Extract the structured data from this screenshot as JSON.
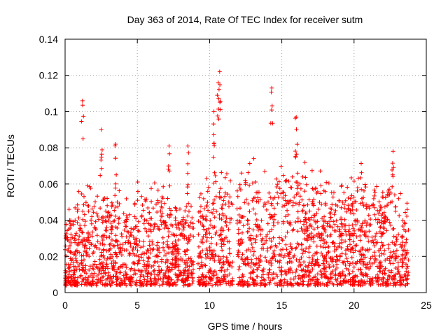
{
  "chart_data": {
    "type": "scatter",
    "title": "Day 363 of 2014, Rate Of TEC Index for receiver sutm",
    "xlabel": "GPS time / hours",
    "ylabel": "ROTI / TECUs",
    "xlim": [
      0,
      25
    ],
    "ylim": [
      0,
      0.14
    ],
    "xticks": [
      0,
      5,
      10,
      15,
      20,
      25
    ],
    "xtick_labels": [
      "0",
      "5",
      "10",
      "15",
      "20",
      "25"
    ],
    "yticks": [
      0,
      0.02,
      0.04,
      0.06,
      0.08,
      0.1,
      0.12,
      0.14
    ],
    "ytick_labels": [
      "0",
      "0.02",
      "0.04",
      "0.06",
      "0.08",
      "0.1",
      "0.12",
      "0.14"
    ],
    "grid": true,
    "marker": "+",
    "color": "#ff0000",
    "data_gaps_hours": [
      [
        8.9,
        9.2
      ],
      [
        11.6,
        11.9
      ]
    ],
    "notable_points": [
      {
        "x": 1.2,
        "y": 0.106
      },
      {
        "x": 2.5,
        "y": 0.09
      },
      {
        "x": 3.5,
        "y": 0.082
      },
      {
        "x": 7.2,
        "y": 0.081
      },
      {
        "x": 8.5,
        "y": 0.081
      },
      {
        "x": 10.3,
        "y": 0.1
      },
      {
        "x": 10.6,
        "y": 0.116
      },
      {
        "x": 10.7,
        "y": 0.122
      },
      {
        "x": 14.3,
        "y": 0.113
      },
      {
        "x": 16.0,
        "y": 0.097
      },
      {
        "x": 22.7,
        "y": 0.078
      }
    ],
    "envelope": [
      {
        "x": 0.5,
        "y": 0.045
      },
      {
        "x": 1.0,
        "y": 0.055
      },
      {
        "x": 1.5,
        "y": 0.06
      },
      {
        "x": 2.0,
        "y": 0.058
      },
      {
        "x": 2.5,
        "y": 0.05
      },
      {
        "x": 3.0,
        "y": 0.052
      },
      {
        "x": 3.5,
        "y": 0.06
      },
      {
        "x": 4.0,
        "y": 0.05
      },
      {
        "x": 4.5,
        "y": 0.052
      },
      {
        "x": 5.0,
        "y": 0.06
      },
      {
        "x": 5.5,
        "y": 0.055
      },
      {
        "x": 6.0,
        "y": 0.056
      },
      {
        "x": 6.5,
        "y": 0.058
      },
      {
        "x": 7.0,
        "y": 0.058
      },
      {
        "x": 7.5,
        "y": 0.055
      },
      {
        "x": 8.0,
        "y": 0.05
      },
      {
        "x": 8.5,
        "y": 0.05
      },
      {
        "x": 9.5,
        "y": 0.06
      },
      {
        "x": 10.0,
        "y": 0.062
      },
      {
        "x": 10.5,
        "y": 0.07
      },
      {
        "x": 11.0,
        "y": 0.065
      },
      {
        "x": 11.4,
        "y": 0.06
      },
      {
        "x": 12.2,
        "y": 0.068
      },
      {
        "x": 12.5,
        "y": 0.07
      },
      {
        "x": 13.0,
        "y": 0.07
      },
      {
        "x": 13.5,
        "y": 0.065
      },
      {
        "x": 14.0,
        "y": 0.065
      },
      {
        "x": 14.5,
        "y": 0.062
      },
      {
        "x": 15.0,
        "y": 0.068
      },
      {
        "x": 15.5,
        "y": 0.065
      },
      {
        "x": 16.0,
        "y": 0.075
      },
      {
        "x": 16.5,
        "y": 0.07
      },
      {
        "x": 17.0,
        "y": 0.065
      },
      {
        "x": 17.5,
        "y": 0.07
      },
      {
        "x": 18.0,
        "y": 0.06
      },
      {
        "x": 18.5,
        "y": 0.058
      },
      {
        "x": 19.0,
        "y": 0.06
      },
      {
        "x": 19.5,
        "y": 0.06
      },
      {
        "x": 20.0,
        "y": 0.065
      },
      {
        "x": 20.5,
        "y": 0.068
      },
      {
        "x": 21.0,
        "y": 0.062
      },
      {
        "x": 21.5,
        "y": 0.065
      },
      {
        "x": 22.0,
        "y": 0.062
      },
      {
        "x": 22.5,
        "y": 0.06
      },
      {
        "x": 23.0,
        "y": 0.055
      },
      {
        "x": 23.5,
        "y": 0.05
      }
    ]
  }
}
